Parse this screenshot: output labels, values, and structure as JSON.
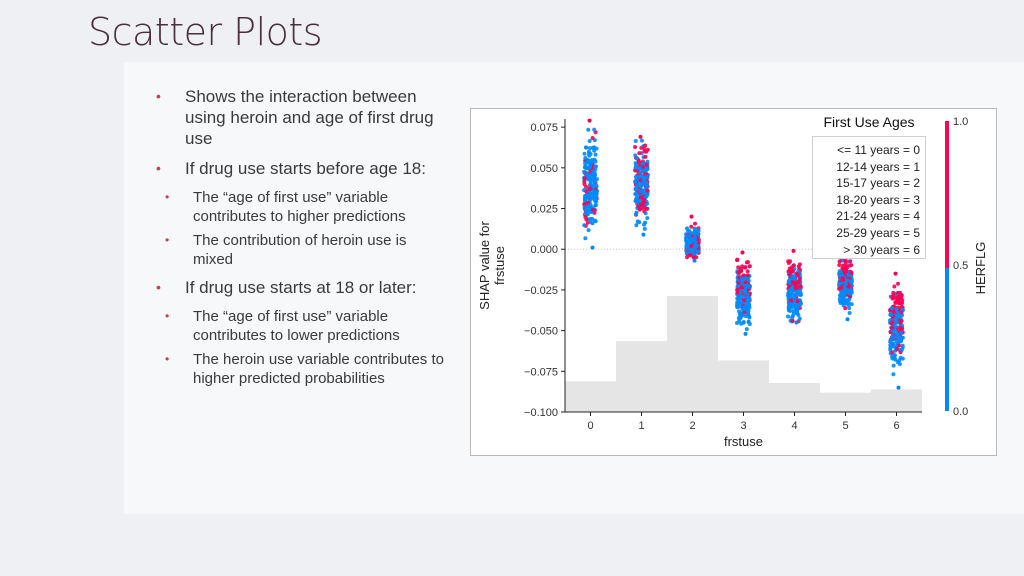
{
  "slide": {
    "title": "Scatter Plots"
  },
  "bullets": [
    {
      "text": "Shows the interaction between using heroin and age of first drug use",
      "children": []
    },
    {
      "text": "If drug use starts before age 18:",
      "children": [
        "The “age of first use” variable contributes to higher predictions",
        "The contribution of heroin use is mixed"
      ]
    },
    {
      "text": "If drug use starts at 18 or later:",
      "children": [
        "The “age of first use” variable contributes to lower predictions",
        "The heroin use variable contributes to higher predicted probabilities"
      ]
    }
  ],
  "legend": {
    "title": "First Use Ages",
    "items": [
      "<= 11 years = 0",
      "12-14 years = 1",
      "15-17 years = 2",
      "18-20 years = 3",
      "21-24 years = 4",
      "25-29 years = 5",
      "> 30 years = 6"
    ]
  },
  "colors": {
    "high": "#ff0052",
    "low": "#008bfb",
    "histogram": "#e5e5e5",
    "accent_bullet": "#c2404f",
    "title": "#4a2f3a"
  },
  "chart_data": {
    "type": "scatter",
    "xlabel": "frstuse",
    "ylabel": "SHAP value for\nfrstuse",
    "ylim": [
      -0.1,
      0.08
    ],
    "yticks": [
      "0.075",
      "0.050",
      "0.025",
      "0.000",
      "−0.025",
      "−0.050",
      "−0.075",
      "−0.100"
    ],
    "ytick_values": [
      0.075,
      0.05,
      0.025,
      0.0,
      -0.025,
      -0.05,
      -0.075,
      -0.1
    ],
    "xticks": [
      "0",
      "1",
      "2",
      "3",
      "4",
      "5",
      "6"
    ],
    "x": [
      0,
      1,
      2,
      3,
      4,
      5,
      6
    ],
    "series": [
      {
        "x": 0,
        "y_min": 0.001,
        "y_max": 0.079,
        "mean": 0.039,
        "spread": 0.014,
        "mix": "blue-dominant"
      },
      {
        "x": 1,
        "y_min": 0.009,
        "y_max": 0.069,
        "mean": 0.04,
        "spread": 0.011,
        "mix": "mixed"
      },
      {
        "x": 2,
        "y_min": -0.007,
        "y_max": 0.02,
        "mean": 0.004,
        "spread": 0.004,
        "mix": "blue-dominant"
      },
      {
        "x": 3,
        "y_min": -0.052,
        "y_max": -0.002,
        "mean": -0.027,
        "spread": 0.009,
        "mix": "red-top"
      },
      {
        "x": 4,
        "y_min": -0.045,
        "y_max": -0.001,
        "mean": -0.025,
        "spread": 0.008,
        "mix": "red-top"
      },
      {
        "x": 5,
        "y_min": -0.043,
        "y_max": -0.003,
        "mean": -0.021,
        "spread": 0.007,
        "mix": "red-top"
      },
      {
        "x": 6,
        "y_min": -0.085,
        "y_max": -0.015,
        "mean": -0.047,
        "spread": 0.011,
        "mix": "red-top"
      }
    ],
    "histogram_relative": [
      0.19,
      0.44,
      0.72,
      0.32,
      0.18,
      0.12,
      0.14
    ],
    "colorbar": {
      "label": "HERFLG",
      "ticks": [
        "1.0",
        "0.5",
        "0.0"
      ],
      "range": [
        0,
        1
      ]
    },
    "grid": false,
    "legend_position": "top-right"
  }
}
